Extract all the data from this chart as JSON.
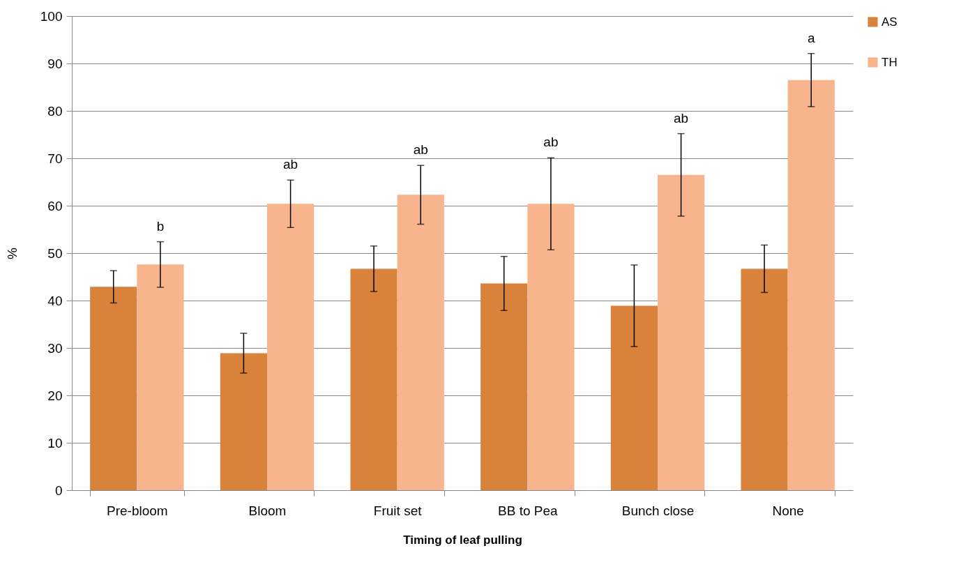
{
  "chart_data": {
    "type": "bar",
    "xlabel": "Timing of leaf pulling",
    "ylabel": "%",
    "categories": [
      "Pre-bloom",
      "Bloom",
      "Fruit set",
      "BB to Pea",
      "Bunch close",
      "None"
    ],
    "series": [
      {
        "name": "AS",
        "color": "#d9823b",
        "values": [
          42.9,
          28.9,
          46.7,
          43.6,
          38.9,
          46.7
        ],
        "errors": [
          3.4,
          4.2,
          4.8,
          5.7,
          8.6,
          5.0
        ]
      },
      {
        "name": "TH",
        "color": "#f7b48d",
        "values": [
          47.6,
          60.4,
          62.3,
          60.4,
          66.5,
          86.5
        ],
        "errors": [
          4.8,
          5.0,
          6.2,
          9.7,
          8.7,
          5.6
        ]
      }
    ],
    "ylim": [
      0,
      100
    ],
    "yticks": [
      0,
      10,
      20,
      30,
      40,
      50,
      60,
      70,
      80,
      90,
      100
    ],
    "grid": "y",
    "legend": "right",
    "annotations": [
      "b",
      "ab",
      "ab",
      "ab",
      "ab",
      "a"
    ]
  }
}
